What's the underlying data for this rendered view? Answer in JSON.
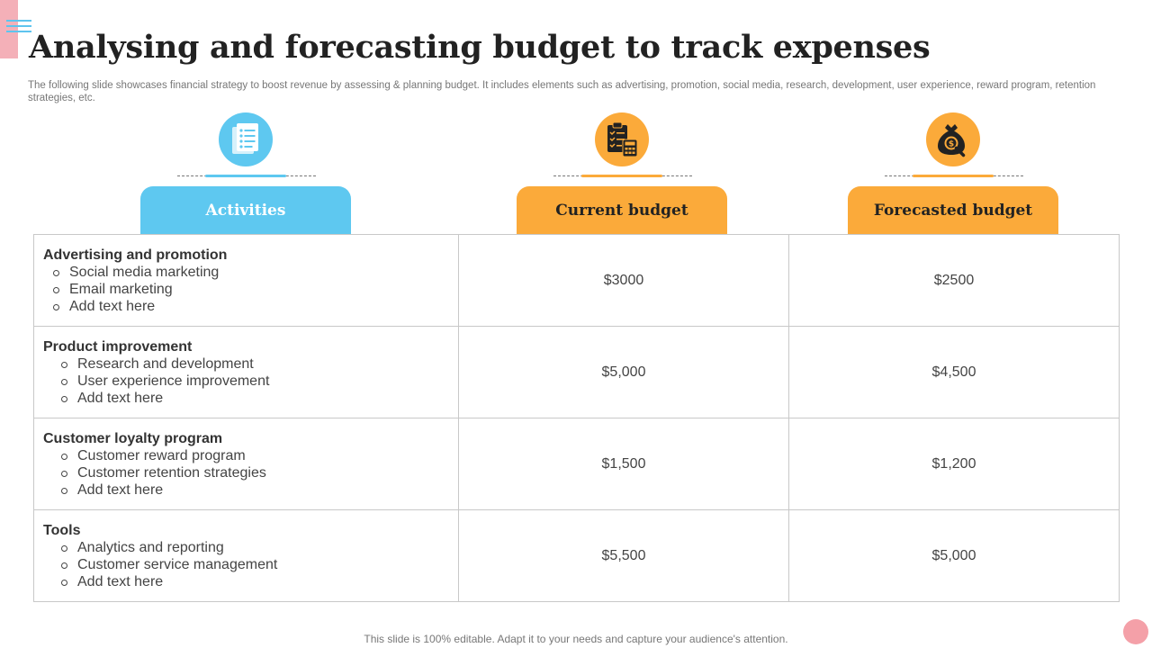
{
  "header": {
    "title": "Analysing and forecasting budget to track expenses",
    "subtitle": "The following slide showcases financial strategy to boost revenue by assessing & planning budget. It includes elements such as advertising, promotion, social media, research, development, user experience, reward program, retention strategies, etc."
  },
  "columns": [
    {
      "label": "Activities",
      "icon": "checklist-document-icon",
      "color": "#5ec8f0"
    },
    {
      "label": "Current budget",
      "icon": "clipboard-calculator-icon",
      "color": "#fbaa3a"
    },
    {
      "label": "Forecasted budget",
      "icon": "money-bag-search-icon",
      "color": "#fbaa3a"
    }
  ],
  "rows": [
    {
      "heading": "Advertising and promotion",
      "items": [
        "Social media marketing",
        "Email marketing",
        "Add text here"
      ],
      "current": "$3000",
      "forecast": "$2500"
    },
    {
      "heading": "Product improvement",
      "items": [
        "Research and development",
        "User experience improvement",
        "Add text here"
      ],
      "current": "$5,000",
      "forecast": "$4,500"
    },
    {
      "heading": "Customer loyalty program",
      "items": [
        "Customer reward program",
        "Customer retention strategies",
        "Add text here"
      ],
      "current": "$1,500",
      "forecast": "$1,200"
    },
    {
      "heading": "Tools",
      "items": [
        "Analytics and reporting",
        "Customer service management",
        "Add text here"
      ],
      "current": "$5,500",
      "forecast": "$5,000"
    }
  ],
  "footer": {
    "note": "This slide is 100% editable. Adapt it to your needs and capture your audience's attention."
  },
  "colors": {
    "blue_accent": "#5ec8f0",
    "orange_accent": "#fbaa3a",
    "pink_accent": "#f4b0b8"
  }
}
